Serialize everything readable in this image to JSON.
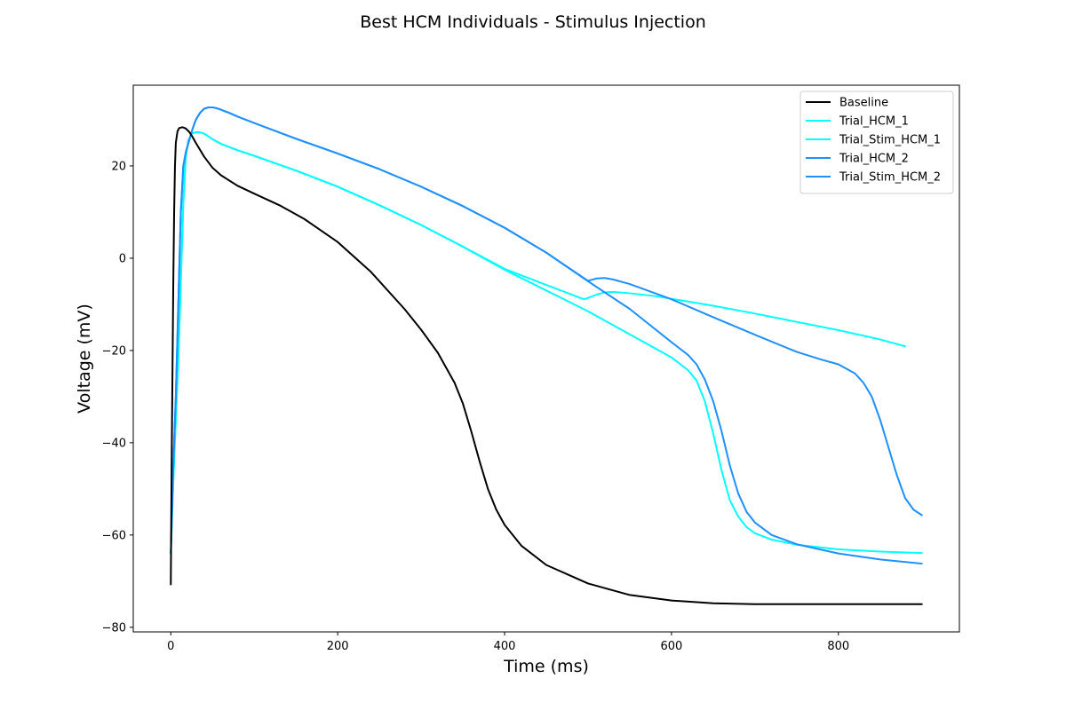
{
  "chart_data": {
    "type": "line",
    "title": "Best HCM Individuals - Stimulus Injection",
    "xlabel": "Time (ms)",
    "ylabel": "Voltage (mV)",
    "xlim": [
      -45,
      945
    ],
    "ylim": [
      -81,
      37.5
    ],
    "xticks": [
      0,
      200,
      400,
      600,
      800
    ],
    "yticks": [
      -80,
      -60,
      -40,
      -20,
      0,
      20
    ],
    "grid": false,
    "legend_position": "top-right",
    "series": [
      {
        "name": "Baseline",
        "color": "#000000",
        "x": [
          0,
          1,
          2,
          3,
          4,
          5,
          6,
          8,
          10,
          14,
          18,
          22,
          26,
          30,
          40,
          50,
          60,
          80,
          100,
          130,
          160,
          200,
          240,
          280,
          300,
          320,
          340,
          350,
          360,
          370,
          380,
          390,
          400,
          420,
          450,
          500,
          550,
          600,
          650,
          700,
          800,
          900
        ],
        "y": [
          -70.7,
          -45,
          -25,
          -5,
          10,
          20,
          25,
          27.5,
          28.2,
          28.4,
          28.1,
          27.4,
          26.3,
          25,
          22,
          19.6,
          18,
          15.7,
          14,
          11.5,
          8.5,
          3.5,
          -3,
          -11,
          -15.5,
          -20.5,
          -27,
          -31.5,
          -37.5,
          -44,
          -50,
          -54.5,
          -57.8,
          -62.3,
          -66.5,
          -70.5,
          -73,
          -74.2,
          -74.8,
          -75,
          -75,
          -75
        ]
      },
      {
        "name": "Trial_HCM_1",
        "color": "#00ffff",
        "x": [
          0,
          3,
          6,
          9,
          12,
          15,
          18,
          21,
          25,
          30,
          35,
          40,
          50,
          60,
          80,
          100,
          150,
          200,
          250,
          300,
          350,
          400,
          450,
          500,
          550,
          600,
          620,
          630,
          640,
          650,
          660,
          670,
          680,
          690,
          700,
          720,
          750,
          800,
          850,
          900
        ],
        "y": [
          -64,
          -48,
          -35,
          -22,
          -5,
          12,
          22,
          25.5,
          27,
          27.3,
          27.3,
          27,
          25.8,
          24.8,
          23.4,
          22.2,
          19,
          15.5,
          11.5,
          7.2,
          2.5,
          -2.5,
          -7,
          -11.5,
          -16.5,
          -21.5,
          -24.3,
          -26.5,
          -31,
          -38,
          -46,
          -52.5,
          -56,
          -58.3,
          -59.6,
          -61,
          -62.1,
          -63.1,
          -63.6,
          -63.9
        ]
      },
      {
        "name": "Trial_Stim_HCM_1",
        "color": "#00ffff",
        "x": [
          0,
          3,
          6,
          9,
          12,
          15,
          18,
          21,
          25,
          30,
          35,
          40,
          50,
          60,
          80,
          100,
          150,
          200,
          250,
          300,
          350,
          400,
          450,
          495,
          500,
          510,
          520,
          530,
          550,
          580,
          600,
          650,
          700,
          750,
          800,
          850,
          880
        ],
        "y": [
          -64,
          -48,
          -35,
          -22,
          -5,
          12,
          22,
          25.5,
          27,
          27.3,
          27.3,
          27,
          25.8,
          24.8,
          23.4,
          22.2,
          19,
          15.5,
          11.5,
          7.2,
          2.5,
          -2.3,
          -5.8,
          -8.9,
          -8.6,
          -7.9,
          -7.4,
          -7.3,
          -7.6,
          -8.2,
          -8.8,
          -10.3,
          -12,
          -13.8,
          -15.6,
          -17.6,
          -19.1
        ]
      },
      {
        "name": "Trial_HCM_2",
        "color": "#1e90ff",
        "x": [
          0,
          3,
          6,
          9,
          12,
          15,
          18,
          22,
          26,
          30,
          35,
          40,
          45,
          50,
          55,
          60,
          70,
          80,
          100,
          150,
          200,
          250,
          300,
          350,
          400,
          450,
          500,
          550,
          600,
          620,
          630,
          640,
          650,
          660,
          670,
          680,
          690,
          700,
          720,
          750,
          800,
          850,
          900
        ],
        "y": [
          -64,
          -45,
          -30,
          -10,
          10,
          20,
          23,
          25.5,
          28,
          30,
          31.5,
          32.4,
          32.7,
          32.7,
          32.5,
          32.2,
          31.5,
          30.7,
          29.3,
          25.9,
          22.7,
          19.3,
          15.5,
          11.3,
          6.6,
          1.2,
          -5,
          -11,
          -18.2,
          -21,
          -23,
          -26.3,
          -31,
          -37.5,
          -45,
          -51,
          -55,
          -57.3,
          -60,
          -62,
          -64,
          -65.3,
          -66.2
        ]
      },
      {
        "name": "Trial_Stim_HCM_2",
        "color": "#1e90ff",
        "x": [
          0,
          3,
          6,
          9,
          12,
          15,
          18,
          22,
          26,
          30,
          35,
          40,
          45,
          50,
          55,
          60,
          70,
          80,
          100,
          150,
          200,
          250,
          300,
          350,
          400,
          450,
          495,
          500,
          510,
          520,
          530,
          550,
          600,
          650,
          700,
          750,
          780,
          800,
          820,
          830,
          840,
          850,
          860,
          870,
          880,
          890,
          900
        ],
        "y": [
          -64,
          -45,
          -30,
          -10,
          10,
          20,
          23,
          25.5,
          28,
          30,
          31.5,
          32.4,
          32.7,
          32.7,
          32.5,
          32.2,
          31.5,
          30.7,
          29.3,
          25.9,
          22.7,
          19.3,
          15.5,
          11.3,
          6.6,
          1.2,
          -4.3,
          -4.9,
          -4.4,
          -4.3,
          -4.6,
          -5.6,
          -8.9,
          -12.8,
          -16.6,
          -20.3,
          -22,
          -23,
          -25,
          -27,
          -30,
          -35,
          -41,
          -47,
          -52,
          -54.5,
          -55.7
        ]
      }
    ]
  }
}
